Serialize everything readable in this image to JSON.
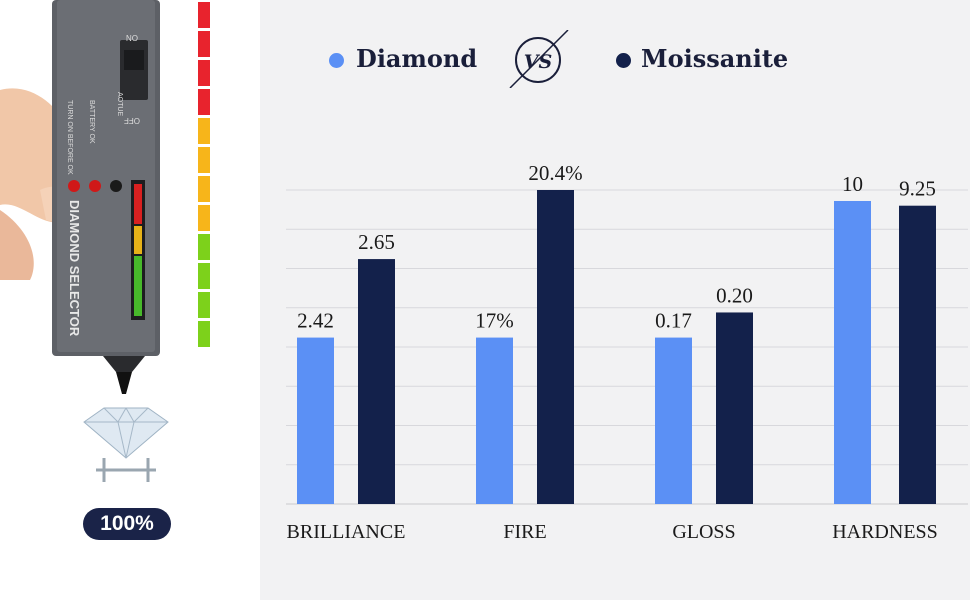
{
  "device": {
    "brand_text": "DIAMOND SELECTOR",
    "led_labels": [
      "TURN ON BEFORE OK",
      "BATTERY OK"
    ],
    "switch_label": "AOTUE",
    "switch_on": "ON",
    "switch_off": "OFF",
    "percent_badge": "100%"
  },
  "side_meter": {
    "segments": [
      "#e8232d",
      "#e8232d",
      "#e8232d",
      "#e8232d",
      "#f7b51a",
      "#f7b51a",
      "#f7b51a",
      "#f7b51a",
      "#7dd11b",
      "#7dd11b",
      "#7dd11b",
      "#7dd11b"
    ]
  },
  "legend": {
    "item1": "Diamond",
    "vs": "VS",
    "item2": "Moissanite"
  },
  "colors": {
    "diamond": "#5b90f5",
    "moissanite": "#13214b",
    "panel_bg": "#f2f2f3",
    "grid": "#d8d8dc"
  },
  "chart_data": {
    "type": "bar",
    "categories": [
      "BRILLIANCE",
      "FIRE",
      "GLOSS",
      "HARDNESS"
    ],
    "series": [
      {
        "name": "Diamond",
        "labels": [
          "2.42",
          "17%",
          "0.17",
          "10"
        ],
        "heights": [
          0.53,
          0.53,
          0.53,
          0.965
        ]
      },
      {
        "name": "Moissanite",
        "labels": [
          "2.65",
          "20.4%",
          "0.20",
          "9.25"
        ],
        "heights": [
          0.78,
          1.0,
          0.61,
          0.95
        ]
      }
    ],
    "grid": true
  }
}
